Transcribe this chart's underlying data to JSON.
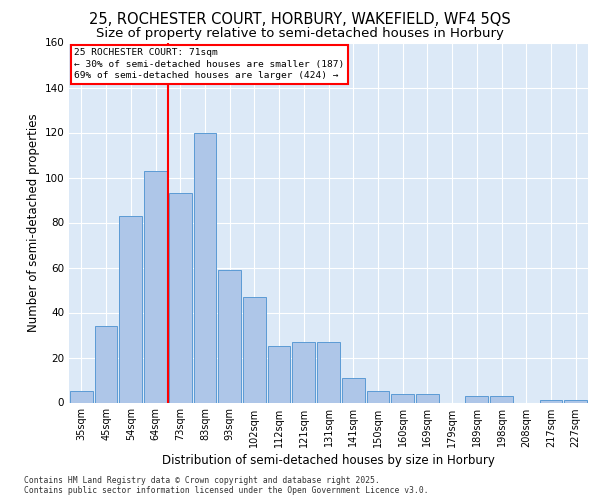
{
  "title1": "25, ROCHESTER COURT, HORBURY, WAKEFIELD, WF4 5QS",
  "title2": "Size of property relative to semi-detached houses in Horbury",
  "xlabel": "Distribution of semi-detached houses by size in Horbury",
  "ylabel": "Number of semi-detached properties",
  "categories": [
    "35sqm",
    "45sqm",
    "54sqm",
    "64sqm",
    "73sqm",
    "83sqm",
    "93sqm",
    "102sqm",
    "112sqm",
    "121sqm",
    "131sqm",
    "141sqm",
    "150sqm",
    "160sqm",
    "169sqm",
    "179sqm",
    "189sqm",
    "198sqm",
    "208sqm",
    "217sqm",
    "227sqm"
  ],
  "values": [
    5,
    34,
    83,
    103,
    93,
    120,
    59,
    47,
    25,
    27,
    27,
    11,
    5,
    4,
    4,
    0,
    3,
    3,
    0,
    1,
    1
  ],
  "bar_color": "#aec6e8",
  "bar_edge_color": "#5b9bd5",
  "vline_color": "red",
  "annotation_title": "25 ROCHESTER COURT: 71sqm",
  "annotation_line1": "← 30% of semi-detached houses are smaller (187)",
  "annotation_line2": "69% of semi-detached houses are larger (424) →",
  "annotation_box_color": "red",
  "footnote1": "Contains HM Land Registry data © Crown copyright and database right 2025.",
  "footnote2": "Contains public sector information licensed under the Open Government Licence v3.0.",
  "bg_color": "#dce9f7",
  "ylim": [
    0,
    160
  ],
  "yticks": [
    0,
    20,
    40,
    60,
    80,
    100,
    120,
    140,
    160
  ],
  "title1_fontsize": 10.5,
  "title2_fontsize": 9.5,
  "xlabel_fontsize": 8.5,
  "ylabel_fontsize": 8.5
}
